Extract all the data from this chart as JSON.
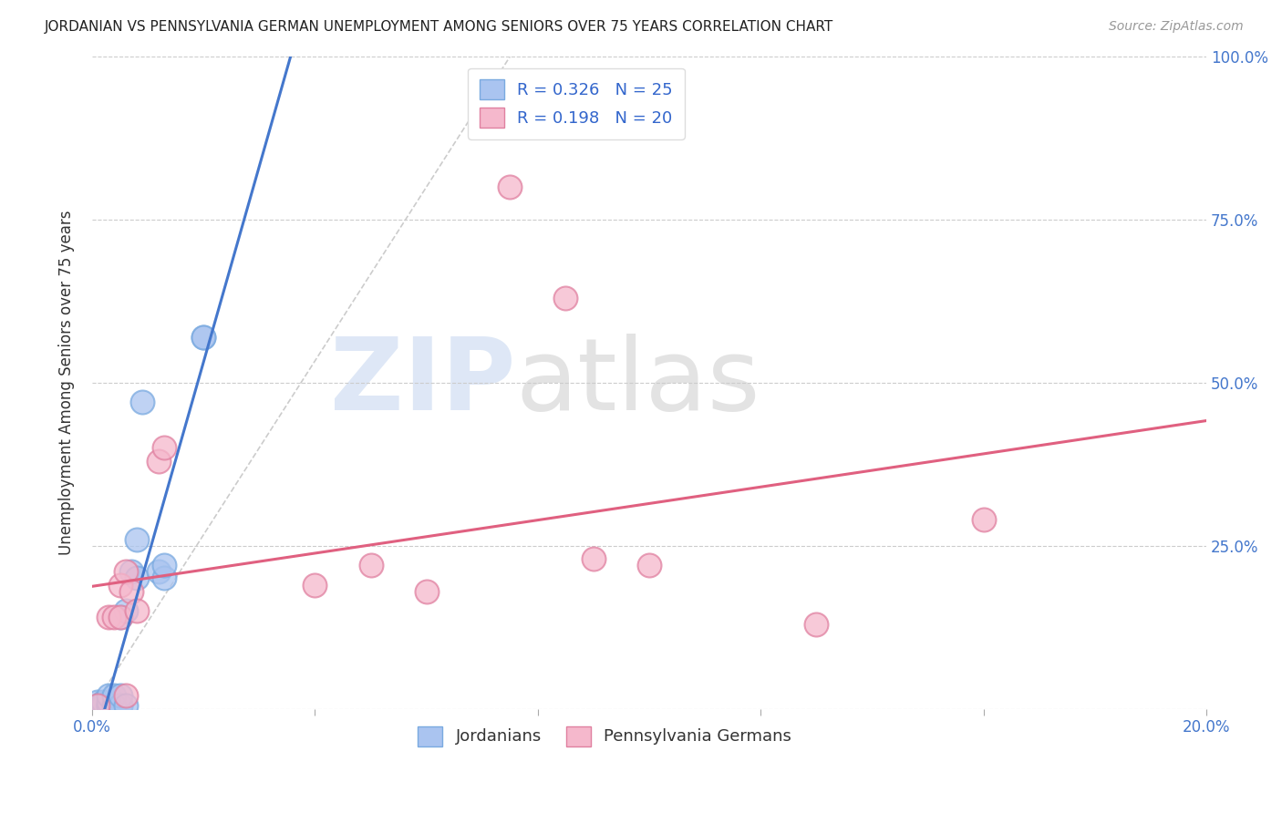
{
  "title": "JORDANIAN VS PENNSYLVANIA GERMAN UNEMPLOYMENT AMONG SENIORS OVER 75 YEARS CORRELATION CHART",
  "source": "Source: ZipAtlas.com",
  "ylabel": "Unemployment Among Seniors over 75 years",
  "xlabel": "",
  "background_color": "#ffffff",
  "watermark_zip": "ZIP",
  "watermark_atlas": "atlas",
  "jordanian_color": "#aac4f0",
  "jordanian_edge": "#7aaae0",
  "jordanian_line_color": "#4477cc",
  "pg_color": "#f5b8cc",
  "pg_edge": "#e080a0",
  "pg_line_color": "#e06080",
  "R_jordanian": 0.326,
  "N_jordanian": 25,
  "R_pg": 0.198,
  "N_pg": 20,
  "diagonal_color": "#cccccc",
  "xlim": [
    0.0,
    0.2
  ],
  "ylim": [
    0.0,
    1.0
  ],
  "jordanian_x": [
    0.001,
    0.001,
    0.002,
    0.002,
    0.003,
    0.003,
    0.003,
    0.003,
    0.004,
    0.004,
    0.005,
    0.005,
    0.005,
    0.005,
    0.006,
    0.006,
    0.007,
    0.008,
    0.008,
    0.009,
    0.012,
    0.013,
    0.013,
    0.02,
    0.02
  ],
  "jordanian_y": [
    0.005,
    0.01,
    0.005,
    0.01,
    0.005,
    0.005,
    0.01,
    0.02,
    0.005,
    0.02,
    0.005,
    0.005,
    0.02,
    0.14,
    0.005,
    0.15,
    0.21,
    0.26,
    0.2,
    0.47,
    0.21,
    0.2,
    0.22,
    0.57,
    0.57
  ],
  "pg_x": [
    0.001,
    0.003,
    0.004,
    0.005,
    0.005,
    0.006,
    0.006,
    0.007,
    0.008,
    0.012,
    0.013,
    0.04,
    0.05,
    0.06,
    0.075,
    0.085,
    0.09,
    0.1,
    0.13,
    0.16
  ],
  "pg_y": [
    0.005,
    0.14,
    0.14,
    0.14,
    0.19,
    0.02,
    0.21,
    0.18,
    0.15,
    0.38,
    0.4,
    0.19,
    0.22,
    0.18,
    0.8,
    0.63,
    0.23,
    0.22,
    0.13,
    0.29
  ],
  "marker_size": 350,
  "marker_lw": 1.5
}
